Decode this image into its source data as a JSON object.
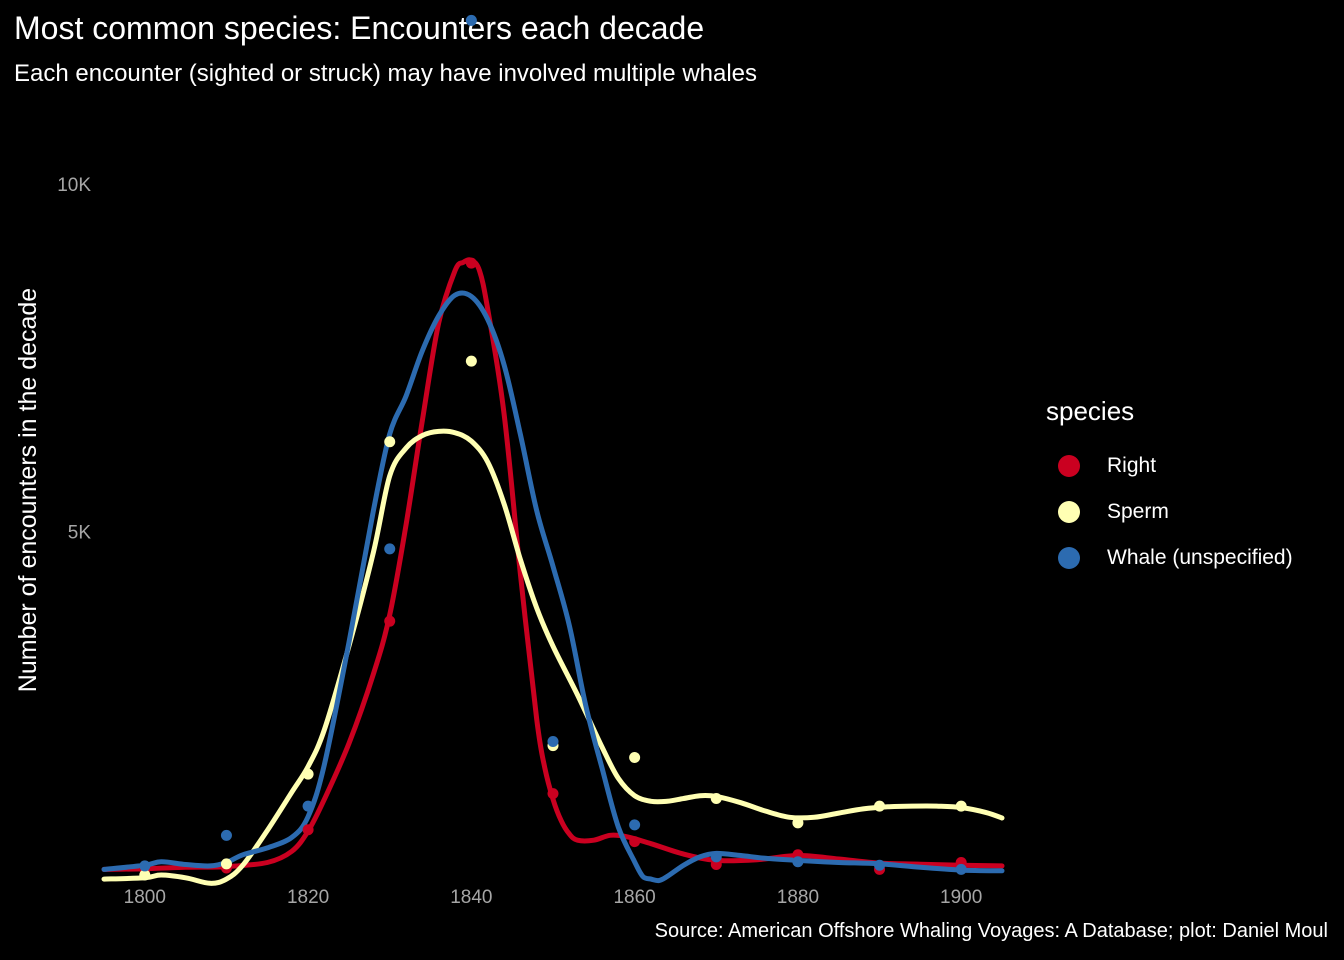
{
  "chart_data": {
    "type": "scatter",
    "title": "Most common species: Encounters each decade",
    "subtitle": "Each encounter (sighted or struck) may have involved multiple whales",
    "ylabel": "Number of encounters in the decade",
    "xlabel": "",
    "caption": "Source: American Offshore Whaling Voyages: A Database; plot: Daniel Moul",
    "xlim": [
      1795,
      1905
    ],
    "ylim": [
      -300,
      12500
    ],
    "x_ticks": [
      1800,
      1820,
      1840,
      1860,
      1880,
      1900
    ],
    "y_ticks": [
      5000,
      10000
    ],
    "y_tick_labels": [
      "5K",
      "10K"
    ],
    "grid": false,
    "legend": {
      "title": "species",
      "position": "right",
      "items": [
        "Right",
        "Sperm",
        "Whale (unspecified)"
      ]
    },
    "series": [
      {
        "name": "Right",
        "color": "#ca0020",
        "points": [
          [
            1800,
            140
          ],
          [
            1810,
            160
          ],
          [
            1820,
            710
          ],
          [
            1830,
            3710
          ],
          [
            1840,
            8860
          ],
          [
            1850,
            1230
          ],
          [
            1860,
            540
          ],
          [
            1870,
            210
          ],
          [
            1880,
            350
          ],
          [
            1890,
            140
          ],
          [
            1900,
            240
          ]
        ],
        "smooth": [
          [
            1795,
            140
          ],
          [
            1800,
            150
          ],
          [
            1805,
            170
          ],
          [
            1810,
            180
          ],
          [
            1815,
            240
          ],
          [
            1818,
            400
          ],
          [
            1820,
            690
          ],
          [
            1822,
            1150
          ],
          [
            1825,
            1950
          ],
          [
            1828,
            2950
          ],
          [
            1830,
            3800
          ],
          [
            1832,
            5100
          ],
          [
            1834,
            6600
          ],
          [
            1836,
            8000
          ],
          [
            1838,
            8750
          ],
          [
            1839,
            8870
          ],
          [
            1840,
            8900
          ],
          [
            1841,
            8750
          ],
          [
            1842,
            8200
          ],
          [
            1844,
            6700
          ],
          [
            1846,
            4400
          ],
          [
            1848,
            2300
          ],
          [
            1849,
            1600
          ],
          [
            1850,
            1150
          ],
          [
            1851,
            840
          ],
          [
            1852,
            650
          ],
          [
            1853,
            560
          ],
          [
            1855,
            560
          ],
          [
            1857,
            630
          ],
          [
            1859,
            610
          ],
          [
            1862,
            510
          ],
          [
            1866,
            360
          ],
          [
            1870,
            270
          ],
          [
            1875,
            280
          ],
          [
            1880,
            340
          ],
          [
            1885,
            290
          ],
          [
            1890,
            230
          ],
          [
            1895,
            215
          ],
          [
            1900,
            200
          ],
          [
            1905,
            190
          ]
        ]
      },
      {
        "name": "Sperm",
        "color": "#ffffb3",
        "points": [
          [
            1800,
            60
          ],
          [
            1810,
            220
          ],
          [
            1820,
            1510
          ],
          [
            1830,
            6290
          ],
          [
            1840,
            7450
          ],
          [
            1850,
            1920
          ],
          [
            1860,
            1750
          ],
          [
            1870,
            1160
          ],
          [
            1880,
            810
          ],
          [
            1890,
            1050
          ],
          [
            1900,
            1050
          ]
        ],
        "smooth": [
          [
            1795,
            0
          ],
          [
            1800,
            20
          ],
          [
            1802,
            60
          ],
          [
            1805,
            20
          ],
          [
            1808,
            -60
          ],
          [
            1810,
            0
          ],
          [
            1812,
            200
          ],
          [
            1815,
            700
          ],
          [
            1818,
            1250
          ],
          [
            1820,
            1620
          ],
          [
            1822,
            2150
          ],
          [
            1825,
            3350
          ],
          [
            1828,
            4700
          ],
          [
            1830,
            5800
          ],
          [
            1832,
            6200
          ],
          [
            1834,
            6380
          ],
          [
            1836,
            6440
          ],
          [
            1838,
            6420
          ],
          [
            1840,
            6300
          ],
          [
            1842,
            6000
          ],
          [
            1844,
            5400
          ],
          [
            1846,
            4600
          ],
          [
            1848,
            3900
          ],
          [
            1850,
            3350
          ],
          [
            1853,
            2650
          ],
          [
            1856,
            1900
          ],
          [
            1858,
            1450
          ],
          [
            1860,
            1200
          ],
          [
            1862,
            1120
          ],
          [
            1864,
            1120
          ],
          [
            1866,
            1160
          ],
          [
            1868,
            1200
          ],
          [
            1870,
            1190
          ],
          [
            1873,
            1100
          ],
          [
            1876,
            980
          ],
          [
            1879,
            890
          ],
          [
            1882,
            890
          ],
          [
            1885,
            950
          ],
          [
            1888,
            1010
          ],
          [
            1891,
            1040
          ],
          [
            1894,
            1050
          ],
          [
            1897,
            1050
          ],
          [
            1900,
            1030
          ],
          [
            1903,
            960
          ],
          [
            1905,
            880
          ]
        ]
      },
      {
        "name": "Whale (unspecified)",
        "color": "#2c6bb0",
        "points": [
          [
            1800,
            190
          ],
          [
            1810,
            630
          ],
          [
            1820,
            1050
          ],
          [
            1830,
            4750
          ],
          [
            1840,
            12350
          ],
          [
            1850,
            1980
          ],
          [
            1860,
            780
          ],
          [
            1870,
            320
          ],
          [
            1880,
            250
          ],
          [
            1890,
            200
          ],
          [
            1900,
            140
          ]
        ],
        "smooth": [
          [
            1795,
            140
          ],
          [
            1800,
            200
          ],
          [
            1802,
            250
          ],
          [
            1805,
            210
          ],
          [
            1808,
            190
          ],
          [
            1810,
            240
          ],
          [
            1812,
            350
          ],
          [
            1815,
            450
          ],
          [
            1818,
            600
          ],
          [
            1820,
            900
          ],
          [
            1822,
            1650
          ],
          [
            1825,
            3400
          ],
          [
            1828,
            5300
          ],
          [
            1830,
            6400
          ],
          [
            1832,
            6950
          ],
          [
            1834,
            7600
          ],
          [
            1836,
            8100
          ],
          [
            1838,
            8400
          ],
          [
            1840,
            8380
          ],
          [
            1842,
            8050
          ],
          [
            1844,
            7400
          ],
          [
            1846,
            6400
          ],
          [
            1848,
            5300
          ],
          [
            1850,
            4500
          ],
          [
            1852,
            3650
          ],
          [
            1854,
            2500
          ],
          [
            1856,
            1600
          ],
          [
            1858,
            750
          ],
          [
            1860,
            250
          ],
          [
            1861,
            40
          ],
          [
            1862,
            0
          ],
          [
            1863,
            -20
          ],
          [
            1864,
            40
          ],
          [
            1866,
            200
          ],
          [
            1868,
            320
          ],
          [
            1870,
            370
          ],
          [
            1873,
            340
          ],
          [
            1876,
            300
          ],
          [
            1880,
            270
          ],
          [
            1885,
            240
          ],
          [
            1890,
            220
          ],
          [
            1895,
            170
          ],
          [
            1900,
            130
          ],
          [
            1905,
            120
          ]
        ]
      }
    ]
  }
}
